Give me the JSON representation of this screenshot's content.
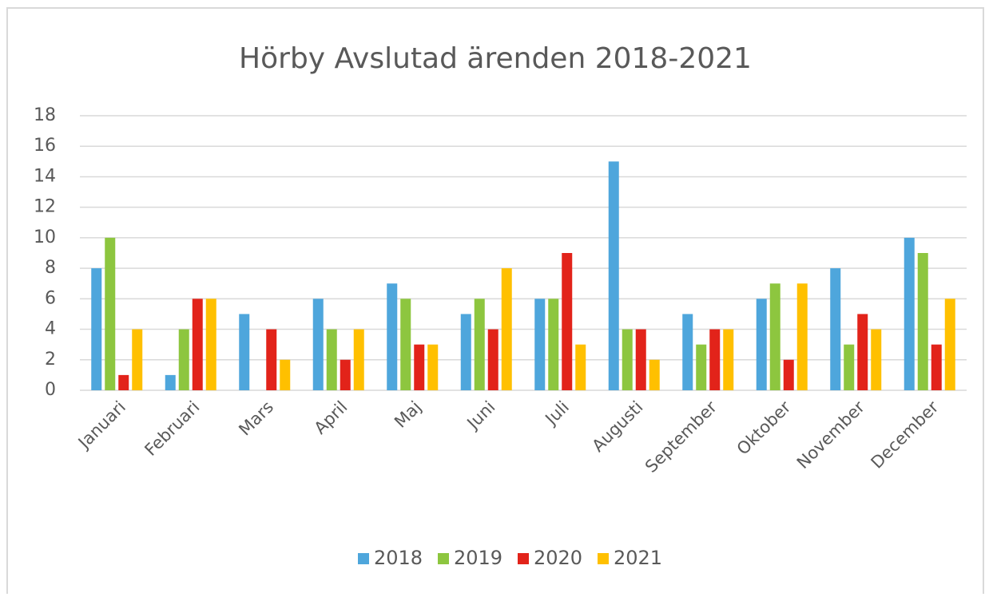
{
  "chart_data": {
    "type": "bar",
    "title": "Hörby Avslutad ärenden 2018-2021",
    "categories": [
      "Januari",
      "Februari",
      "Mars",
      "April",
      "Maj",
      "Juni",
      "Juli",
      "Augusti",
      "September",
      "Oktober",
      "November",
      "December"
    ],
    "series": [
      {
        "name": "2018",
        "color": "#4ea6dc",
        "values": [
          8,
          1,
          5,
          6,
          7,
          5,
          6,
          15,
          5,
          6,
          8,
          10
        ]
      },
      {
        "name": "2019",
        "color": "#8dc63f",
        "values": [
          10,
          4,
          0,
          4,
          6,
          6,
          6,
          4,
          3,
          7,
          3,
          9
        ]
      },
      {
        "name": "2020",
        "color": "#e2231a",
        "values": [
          1,
          6,
          4,
          2,
          3,
          4,
          9,
          4,
          4,
          2,
          5,
          3
        ]
      },
      {
        "name": "2021",
        "color": "#ffc000",
        "values": [
          4,
          6,
          2,
          4,
          3,
          8,
          3,
          2,
          4,
          7,
          4,
          6
        ]
      }
    ],
    "ylim": [
      0,
      18
    ],
    "yticks": [
      0,
      2,
      4,
      6,
      8,
      10,
      12,
      14,
      16,
      18
    ],
    "grid": true,
    "legend": "bottom"
  }
}
